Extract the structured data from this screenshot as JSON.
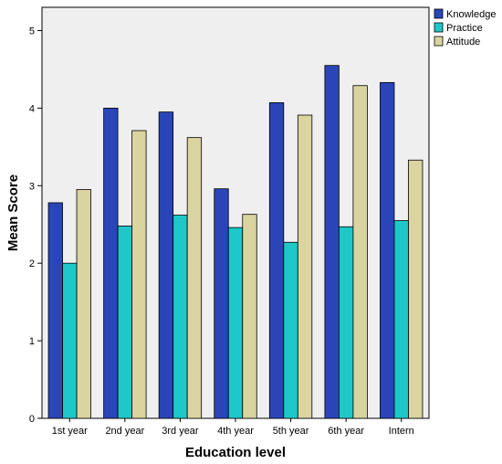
{
  "chart_data": {
    "type": "bar",
    "xlabel": "Education level",
    "ylabel": "Mean Score",
    "ylim": [
      0,
      5.3
    ],
    "yticks": [
      0,
      1,
      2,
      3,
      4,
      5
    ],
    "categories": [
      "1st year",
      "2nd year",
      "3rd year",
      "4th year",
      "5th year",
      "6th year",
      "Intern"
    ],
    "series": [
      {
        "name": "Knowledge",
        "color": "#2a45b8",
        "values": [
          2.78,
          4.0,
          3.95,
          2.96,
          4.07,
          4.55,
          4.33
        ]
      },
      {
        "name": "Practice",
        "color": "#1ec8c8",
        "values": [
          2.0,
          2.48,
          2.62,
          2.46,
          2.27,
          2.47,
          2.55
        ]
      },
      {
        "name": "Attitude",
        "color": "#d9d4a0",
        "values": [
          2.95,
          3.71,
          3.62,
          2.63,
          3.91,
          4.29,
          3.33
        ]
      }
    ],
    "grid": false,
    "legend_position": "top-right",
    "background": "#efefef"
  }
}
